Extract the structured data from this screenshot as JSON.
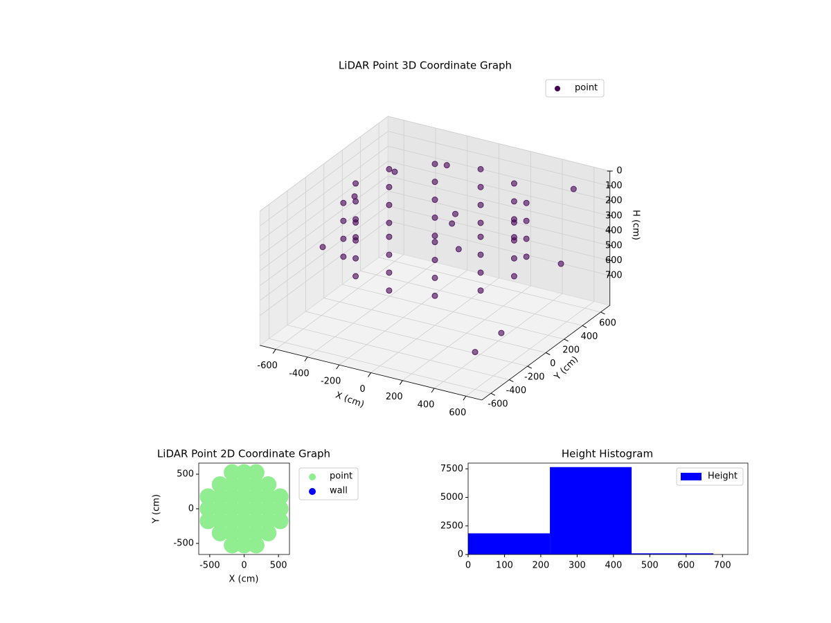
{
  "chart_data": [
    {
      "type": "scatter3d",
      "title": "LiDAR Point 3D Coordinate Graph",
      "xlabel": "X (cm)",
      "ylabel": "Y (cm)",
      "zlabel": "H (cm)",
      "xlim": [
        -700,
        700
      ],
      "ylim": [
        -700,
        700
      ],
      "zlim": [
        0,
        900
      ],
      "zinvert": true,
      "xticks": [
        -600,
        -400,
        -200,
        0,
        200,
        400,
        600
      ],
      "yticks": [
        -600,
        -400,
        -200,
        0,
        200,
        400,
        600
      ],
      "zticks": [
        0,
        100,
        200,
        300,
        400,
        500,
        600,
        700
      ],
      "legend": "upper right",
      "grid": true,
      "series": [
        {
          "name": "point",
          "color": "#440154",
          "x": [
            500,
            433,
            250,
            0,
            -250,
            -433,
            -500,
            -433,
            -250,
            0,
            250,
            433,
            500,
            433,
            250,
            0,
            -250,
            -433,
            -500,
            -433,
            -250,
            0,
            250,
            433,
            500,
            433,
            250,
            0,
            -250,
            -433,
            -500,
            -433,
            -250,
            0,
            250,
            433,
            500,
            433,
            250,
            0,
            -250,
            -433,
            -500,
            -433,
            -250,
            0,
            250,
            433,
            100,
            50,
            150,
            0,
            -680,
            -650,
            -600,
            650,
            680,
            600,
            -300,
            500
          ],
          "y": [
            0,
            250,
            433,
            500,
            433,
            250,
            0,
            -250,
            -433,
            -500,
            -433,
            -250,
            0,
            250,
            433,
            500,
            433,
            250,
            0,
            -250,
            -433,
            -500,
            -433,
            -250,
            0,
            250,
            433,
            500,
            433,
            250,
            0,
            -250,
            -433,
            -500,
            -433,
            -250,
            0,
            250,
            433,
            500,
            433,
            250,
            0,
            -250,
            -433,
            -500,
            -433,
            -250,
            50,
            100,
            0,
            0,
            300,
            -100,
            600,
            -400,
            200,
            -600,
            650,
            650
          ],
          "z": [
            80,
            80,
            80,
            80,
            80,
            80,
            80,
            80,
            80,
            80,
            80,
            80,
            200,
            200,
            200,
            200,
            200,
            200,
            200,
            200,
            200,
            200,
            200,
            200,
            320,
            320,
            320,
            320,
            320,
            320,
            320,
            320,
            320,
            320,
            320,
            320,
            440,
            440,
            440,
            440,
            440,
            440,
            440,
            440,
            440,
            440,
            440,
            440,
            150,
            250,
            350,
            300,
            350,
            500,
            300,
            600,
            400,
            650,
            200,
            150
          ]
        }
      ]
    },
    {
      "type": "scatter",
      "title": "LiDAR Point 2D Coordinate Graph",
      "xlabel": "X (cm)",
      "ylabel": "Y (cm)",
      "xlim": [
        -660,
        660
      ],
      "ylim": [
        -660,
        660
      ],
      "xticks": [
        -500,
        0,
        500
      ],
      "yticks": [
        -500,
        0,
        500
      ],
      "legend": "outside right",
      "series": [
        {
          "name": "point",
          "color": "#90ee90",
          "x": [
            -175,
            0,
            175,
            -350,
            -175,
            0,
            175,
            350,
            -525,
            -350,
            -175,
            0,
            175,
            350,
            525,
            -525,
            -350,
            -175,
            0,
            175,
            350,
            525,
            -525,
            -350,
            -175,
            0,
            175,
            350,
            525,
            -350,
            -175,
            0,
            175,
            350,
            -175,
            0,
            175
          ],
          "y": [
            -525,
            -525,
            -525,
            -350,
            -350,
            -350,
            -350,
            -350,
            -175,
            -175,
            -175,
            -175,
            -175,
            -175,
            -175,
            0,
            0,
            0,
            0,
            0,
            0,
            0,
            175,
            175,
            175,
            175,
            175,
            175,
            175,
            350,
            350,
            350,
            350,
            350,
            525,
            525,
            525
          ]
        },
        {
          "name": "wall",
          "color": "#0000ff",
          "x": [],
          "y": []
        }
      ]
    },
    {
      "type": "histogram",
      "title": "Height Histogram",
      "bins": [
        0,
        225,
        450,
        675
      ],
      "counts": [
        1850,
        7650,
        100
      ],
      "color": "#0000ff",
      "xlim": [
        0,
        770
      ],
      "ylim": [
        0,
        8000
      ],
      "xticks": [
        0,
        100,
        200,
        300,
        400,
        500,
        600,
        700
      ],
      "yticks": [
        0,
        2500,
        5000,
        7500
      ],
      "legend": "upper right",
      "series_name": "Height"
    }
  ]
}
